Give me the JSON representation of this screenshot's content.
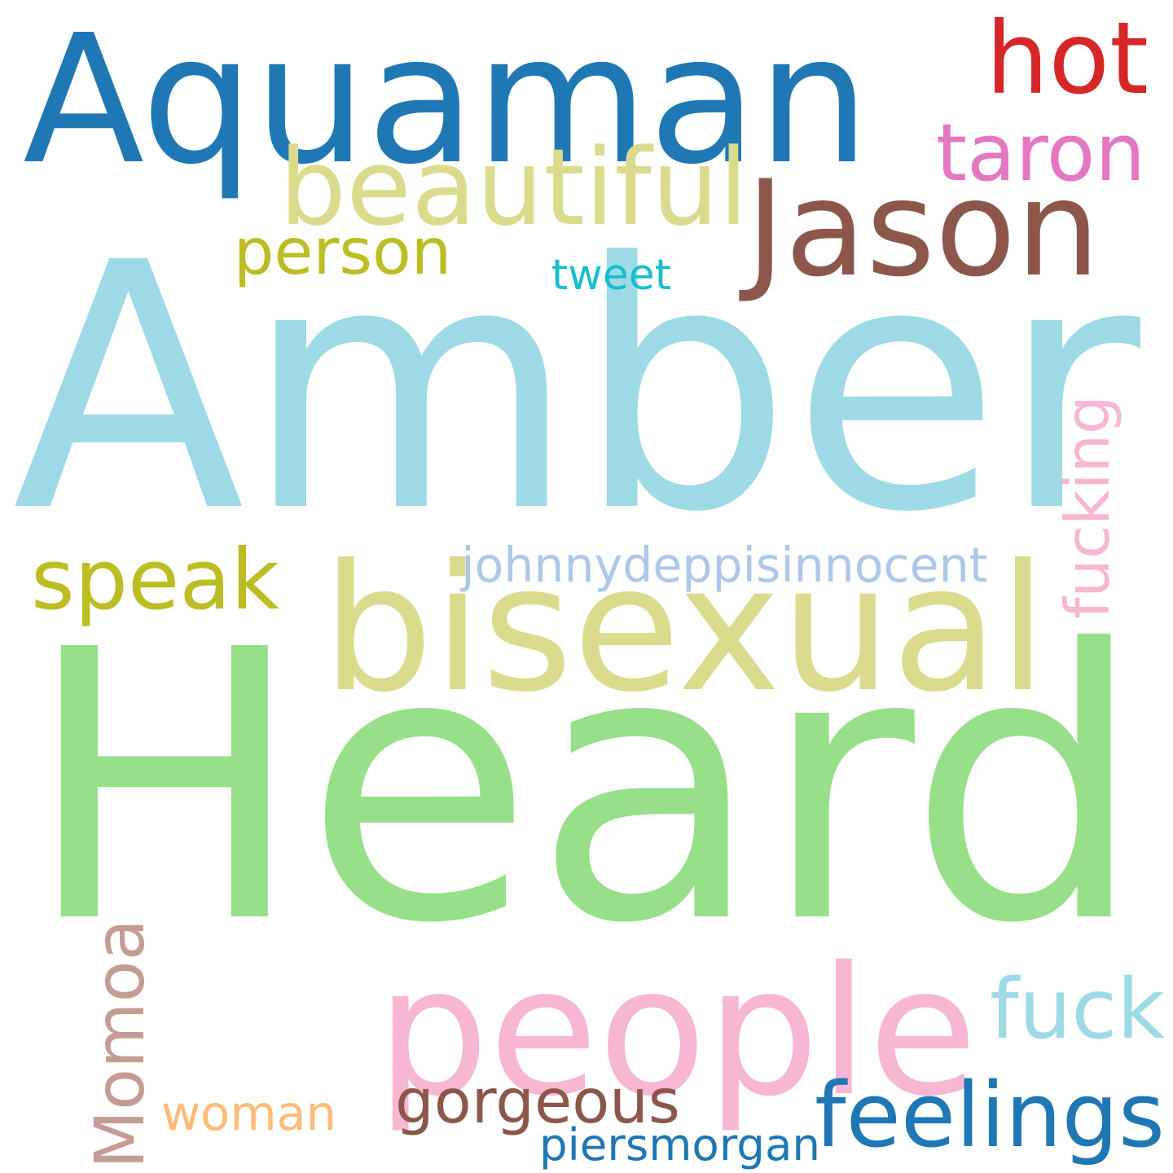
{
  "words": [
    {
      "id": "amber",
      "text": "Amber",
      "color": "#9edae5"
    },
    {
      "id": "heard",
      "text": "Heard",
      "color": "#98df8a"
    },
    {
      "id": "aquaman",
      "text": "Aquaman",
      "color": "#1f77b4"
    },
    {
      "id": "bisexual",
      "text": "bisexual",
      "color": "#dbdb8d"
    },
    {
      "id": "people",
      "text": "people",
      "color": "#f7b6d2"
    },
    {
      "id": "jason",
      "text": "Jason",
      "color": "#8c564b"
    },
    {
      "id": "beautiful",
      "text": "beautiful",
      "color": "#dbdb8d"
    },
    {
      "id": "momoa",
      "text": "Momoa",
      "color": "#c49c94"
    },
    {
      "id": "hot",
      "text": "hot",
      "color": "#d62728"
    },
    {
      "id": "taron",
      "text": "taron",
      "color": "#e377c2"
    },
    {
      "id": "person",
      "text": "person",
      "color": "#bcbd22"
    },
    {
      "id": "speak",
      "text": "speak",
      "color": "#bcbd22"
    },
    {
      "id": "fuck",
      "text": "fuck",
      "color": "#9edae5"
    },
    {
      "id": "feelings",
      "text": "feelings",
      "color": "#1f77b4"
    },
    {
      "id": "gorgeous",
      "text": "gorgeous",
      "color": "#8c564b"
    },
    {
      "id": "fucking",
      "text": "fucking",
      "color": "#f7b6d2"
    },
    {
      "id": "johnnydeppisinnocent",
      "text": "johnnydeppisinnocent",
      "color": "#aec7e8"
    },
    {
      "id": "woman",
      "text": "woman",
      "color": "#ffbb78"
    },
    {
      "id": "tweet",
      "text": "tweet",
      "color": "#17becf"
    },
    {
      "id": "piersmorgan",
      "text": "piersmorgan",
      "color": "#1f77b4"
    }
  ]
}
